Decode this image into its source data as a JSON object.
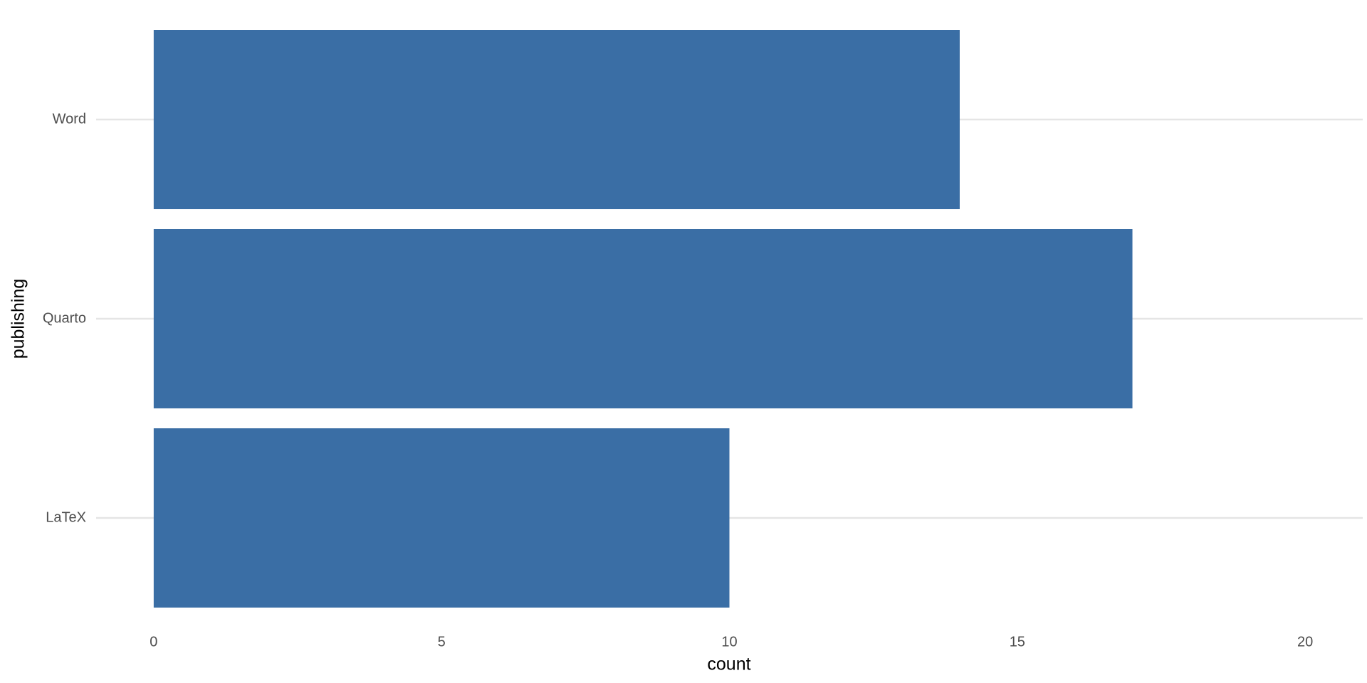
{
  "chart_data": {
    "type": "bar",
    "orientation": "horizontal",
    "categories": [
      "Word",
      "Quarto",
      "LaTeX"
    ],
    "values": [
      14,
      17,
      10
    ],
    "color": "#3a6ea5",
    "xlim": [
      -1,
      21
    ],
    "xticks": [
      0,
      5,
      10,
      15,
      20
    ],
    "x_label": "count",
    "y_label": "publishing",
    "grid": true
  }
}
